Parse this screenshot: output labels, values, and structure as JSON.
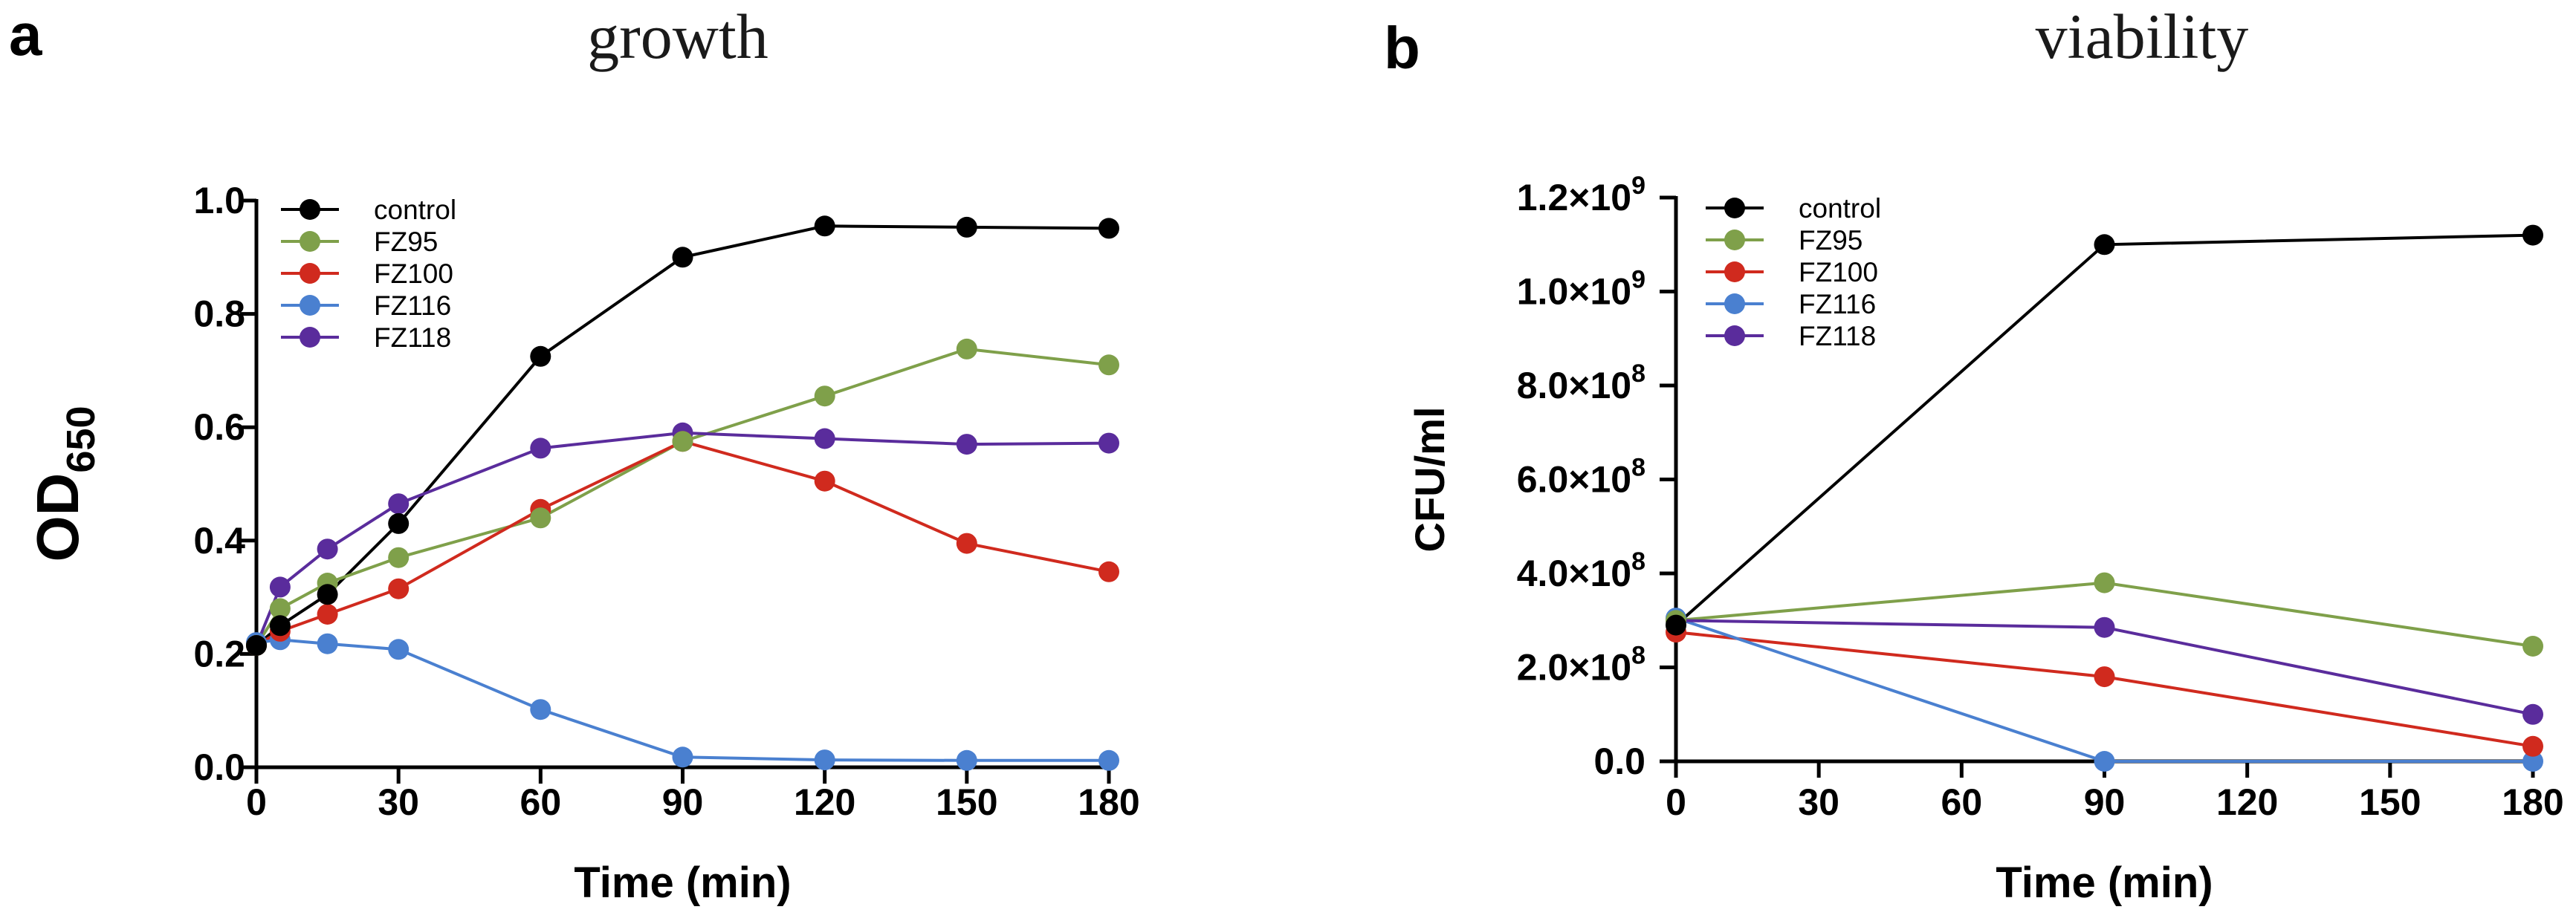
{
  "chart_data": [
    {
      "type": "line",
      "panel_letter": "a",
      "title": "growth",
      "xlabel": "Time (min)",
      "ylabel": "OD",
      "ylabel_subscript": "650",
      "xlim": [
        0,
        180
      ],
      "ylim": [
        0,
        1.0
      ],
      "x_ticks": [
        0,
        30,
        60,
        90,
        120,
        150,
        180
      ],
      "x_tick_labels": [
        "0",
        "30",
        "60",
        "90",
        "120",
        "150",
        "180"
      ],
      "y_ticks": [
        0,
        0.2,
        0.4,
        0.6,
        0.8,
        1.0
      ],
      "y_tick_labels": [
        "0.0",
        "0.2",
        "0.4",
        "0.6",
        "0.8",
        "1.0"
      ],
      "legend_position": "top-left",
      "series": [
        {
          "name": "control",
          "color": "#000000",
          "x": [
            0,
            5,
            15,
            30,
            60,
            90,
            120,
            150,
            180
          ],
          "y": [
            0.215,
            0.25,
            0.305,
            0.43,
            0.725,
            0.9,
            0.955,
            0.953,
            0.951
          ]
        },
        {
          "name": "FZ95",
          "color": "#7FA04A",
          "x": [
            0,
            5,
            15,
            30,
            60,
            90,
            120,
            150,
            180
          ],
          "y": [
            0.215,
            0.28,
            0.325,
            0.37,
            0.44,
            0.575,
            0.655,
            0.738,
            0.71
          ]
        },
        {
          "name": "FZ100",
          "color": "#D02A1E",
          "x": [
            0,
            5,
            15,
            30,
            60,
            90,
            120,
            150,
            180
          ],
          "y": [
            0.215,
            0.24,
            0.27,
            0.315,
            0.455,
            0.575,
            0.505,
            0.395,
            0.345
          ]
        },
        {
          "name": "FZ116",
          "color": "#4A80D0",
          "x": [
            0,
            5,
            15,
            30,
            60,
            90,
            120,
            150,
            180
          ],
          "y": [
            0.22,
            0.225,
            0.218,
            0.208,
            0.102,
            0.018,
            0.013,
            0.012,
            0.012
          ]
        },
        {
          "name": "FZ118",
          "color": "#5A2C9C",
          "x": [
            0,
            5,
            15,
            30,
            60,
            90,
            120,
            150,
            180
          ],
          "y": [
            0.215,
            0.318,
            0.385,
            0.465,
            0.563,
            0.59,
            0.58,
            0.57,
            0.572
          ]
        }
      ]
    },
    {
      "type": "line",
      "panel_letter": "b",
      "title": "viability",
      "xlabel": "Time (min)",
      "ylabel": "CFU/ml",
      "xlim": [
        0,
        180
      ],
      "ylim": [
        0,
        1200000000
      ],
      "x_ticks": [
        0,
        30,
        60,
        90,
        120,
        150,
        180
      ],
      "x_tick_labels": [
        "0",
        "30",
        "60",
        "90",
        "120",
        "150",
        "180"
      ],
      "y_ticks": [
        0,
        200000000,
        400000000,
        600000000,
        800000000,
        1000000000,
        1200000000
      ],
      "y_tick_labels": [
        {
          "base": "0.0",
          "exp": ""
        },
        {
          "base": "2.0×10",
          "exp": "8"
        },
        {
          "base": "4.0×10",
          "exp": "8"
        },
        {
          "base": "6.0×10",
          "exp": "8"
        },
        {
          "base": "8.0×10",
          "exp": "8"
        },
        {
          "base": "1.0×10",
          "exp": "9"
        },
        {
          "base": "1.2×10",
          "exp": "9"
        }
      ],
      "legend_position": "top-left",
      "series": [
        {
          "name": "control",
          "color": "#000000",
          "x": [
            0,
            90,
            180
          ],
          "y": [
            290000000,
            1100000000,
            1120000000
          ]
        },
        {
          "name": "FZ95",
          "color": "#7FA04A",
          "x": [
            0,
            90,
            180
          ],
          "y": [
            300000000,
            380000000,
            245000000
          ]
        },
        {
          "name": "FZ100",
          "color": "#D02A1E",
          "x": [
            0,
            90,
            180
          ],
          "y": [
            275000000,
            180000000,
            32000000
          ]
        },
        {
          "name": "FZ116",
          "color": "#4A80D0",
          "x": [
            0,
            90,
            180
          ],
          "y": [
            305000000,
            0,
            0
          ]
        },
        {
          "name": "FZ118",
          "color": "#5A2C9C",
          "x": [
            0,
            90,
            180
          ],
          "y": [
            300000000,
            285000000,
            100000000
          ]
        }
      ]
    }
  ]
}
